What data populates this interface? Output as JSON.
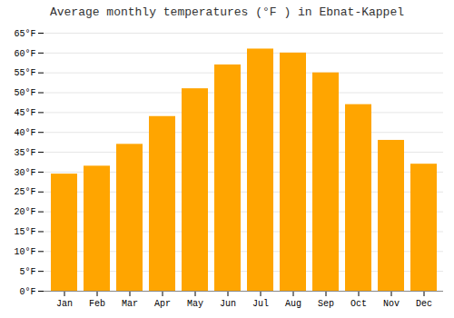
{
  "chart_data": {
    "type": "bar",
    "title": "Average monthly temperatures (°F ) in Ebnat-Kappel",
    "categories": [
      "Jan",
      "Feb",
      "Mar",
      "Apr",
      "May",
      "Jun",
      "Jul",
      "Aug",
      "Sep",
      "Oct",
      "Nov",
      "Dec"
    ],
    "values": [
      29.5,
      31.5,
      37.0,
      44.0,
      51.0,
      57.0,
      61.0,
      60.0,
      55.0,
      47.0,
      38.0,
      32.0
    ],
    "color": "#FFA500",
    "ylim": [
      0,
      65
    ],
    "yticks": [
      {
        "value": 0,
        "label": "0°F"
      },
      {
        "value": 5,
        "label": "5°F"
      },
      {
        "value": 10,
        "label": "10°F"
      },
      {
        "value": 15,
        "label": "15°F"
      },
      {
        "value": 20,
        "label": "20°F"
      },
      {
        "value": 25,
        "label": "25°F"
      },
      {
        "value": 30,
        "label": "30°F"
      },
      {
        "value": 35,
        "label": "35°F"
      },
      {
        "value": 40,
        "label": "40°F"
      },
      {
        "value": 45,
        "label": "45°F"
      },
      {
        "value": 50,
        "label": "50°F"
      },
      {
        "value": 55,
        "label": "55°F"
      },
      {
        "value": 60,
        "label": "60°F"
      },
      {
        "value": 65,
        "label": "65°F"
      }
    ],
    "grid": true
  }
}
